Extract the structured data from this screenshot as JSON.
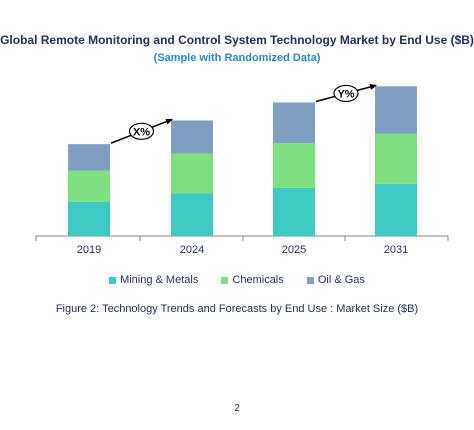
{
  "chart_data": {
    "type": "bar",
    "stacked": true,
    "title": "Global Remote Monitoring and Control System Technology Market by End Use ($B)",
    "subtitle": "(Sample with Randomized Data)",
    "categories": [
      "2019",
      "2024",
      "2025",
      "2031"
    ],
    "series": [
      {
        "name": "Mining & Metals",
        "color": "#3ec9c4",
        "values": [
          36,
          45,
          51,
          55
        ]
      },
      {
        "name": "Chemicals",
        "color": "#7ee07e",
        "values": [
          33,
          42,
          47,
          53
        ]
      },
      {
        "name": "Oil & Gas",
        "color": "#7f9fc2",
        "values": [
          28,
          35,
          43,
          50
        ]
      }
    ],
    "annotations": [
      {
        "label": "X%",
        "from": "2019",
        "to": "2024"
      },
      {
        "label": "Y%",
        "from": "2025",
        "to": "2031"
      }
    ],
    "ylim": [
      0,
      170
    ],
    "grid": false,
    "legend_position": "bottom"
  },
  "caption": "Figure 2: Technology Trends and Forecasts by End Use : Market Size ($B)",
  "page_number": "2"
}
